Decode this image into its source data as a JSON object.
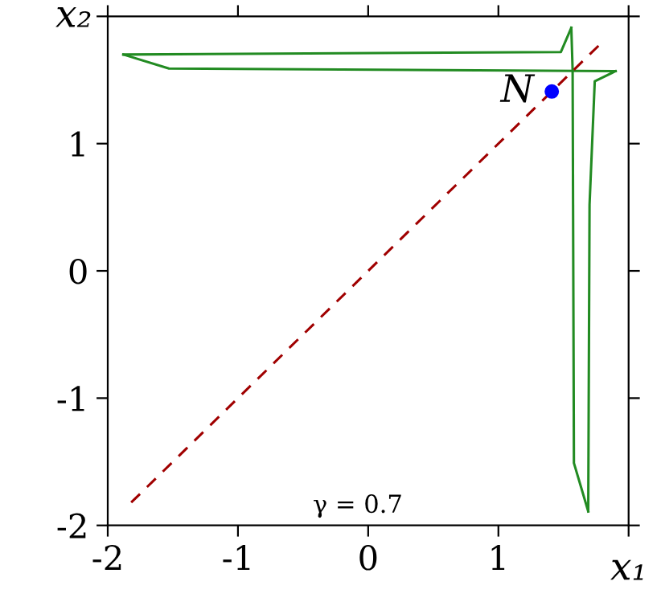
{
  "chart_data": {
    "type": "line",
    "xlabel": "x₁",
    "ylabel": "x₂",
    "xlim": [
      -2,
      2
    ],
    "ylim": [
      -2,
      2
    ],
    "xticks": [
      -2,
      -1,
      0,
      1,
      {
        "value": 2,
        "label": null
      }
    ],
    "yticks": [
      -2,
      -1,
      0,
      1,
      {
        "value": 2,
        "label": null
      }
    ],
    "grid": false,
    "legend": false,
    "series": [
      {
        "type": "line",
        "color": "#228b22",
        "line_style": "solid",
        "x": [
          -1.88,
          1.48,
          1.56
        ],
        "values": [
          1.7,
          1.72,
          1.91
        ]
      },
      {
        "type": "line",
        "color": "#228b22",
        "line_style": "solid",
        "x": [
          1.56,
          1.57,
          1.58,
          1.69
        ],
        "values": [
          1.91,
          1.58,
          -1.51,
          -1.89
        ]
      },
      {
        "type": "line",
        "color": "#228b22",
        "line_style": "solid",
        "x": [
          1.69,
          1.7,
          1.74,
          1.9
        ],
        "values": [
          -1.89,
          0.52,
          1.49,
          1.57
        ]
      },
      {
        "type": "line",
        "color": "#228b22",
        "line_style": "solid",
        "x": [
          -1.88,
          -1.53,
          1.9
        ],
        "values": [
          1.7,
          1.59,
          1.57
        ]
      },
      {
        "color": "#a00000",
        "line_style": "dashed",
        "x": [
          -1.82,
          1.8
        ],
        "values": [
          -1.82,
          1.8
        ]
      },
      {
        "type": "scatter",
        "name": "N",
        "color": "#0000ff",
        "marker": "circle",
        "x": [
          1.41
        ],
        "values": [
          1.41
        ]
      }
    ],
    "annotations": [
      "γ = 0.7"
    ]
  }
}
